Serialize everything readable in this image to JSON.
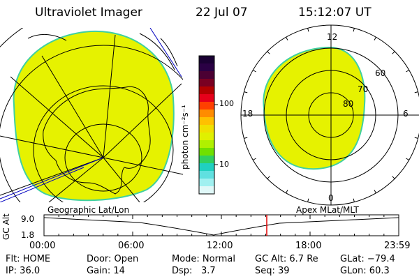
{
  "header": {
    "instrument": "Ultraviolet Imager",
    "date": "22 Jul 07",
    "time": "15:12:07 UT"
  },
  "colorbar": {
    "unit_label": "photon cm⁻²s⁻¹",
    "ticks": [
      "100",
      "10"
    ],
    "colors": [
      "#1a0033",
      "#2a0044",
      "#4b0033",
      "#7a0022",
      "#b30000",
      "#e6001a",
      "#ff4000",
      "#ff8c00",
      "#ffc000",
      "#f0e000",
      "#e0f000",
      "#b0f000",
      "#70e000",
      "#30d060",
      "#20d0c0",
      "#60e0e0",
      "#a0f0f0",
      "#e0f8f8"
    ]
  },
  "polar": {
    "top_label": "12",
    "bottom_label": "0",
    "left_label": "18",
    "right_label": "6",
    "ring_labels": [
      "60",
      "70",
      "80"
    ]
  },
  "timeline": {
    "left_title": "Geographic Lat/Lon",
    "right_title": "Apex MLat/MLT",
    "axis_label": "GC Alt",
    "y_ticks": [
      "9.0",
      "1.8"
    ],
    "x_ticks": [
      "00:00",
      "06:00",
      "12:00",
      "18:00",
      "23:59"
    ]
  },
  "status": {
    "flt": "Flt: HOME",
    "ip": "IP: 36.0",
    "door": "Door: Open",
    "gain": "Gain: 14",
    "mode": "Mode: Normal",
    "dsp": "Dsp:",
    "dsp_value": "3.7",
    "gc_alt": "GC Alt: 6.7 Re",
    "seq": "Seq: 39",
    "glat": "GLat: −79.4",
    "glon": "GLon:  60.3"
  },
  "colors": {
    "aurora": "#e6f200",
    "aurora_edge": "#40d0a0",
    "grid": "#000000",
    "marker": "#e00000",
    "orbit": "#0000c0"
  }
}
